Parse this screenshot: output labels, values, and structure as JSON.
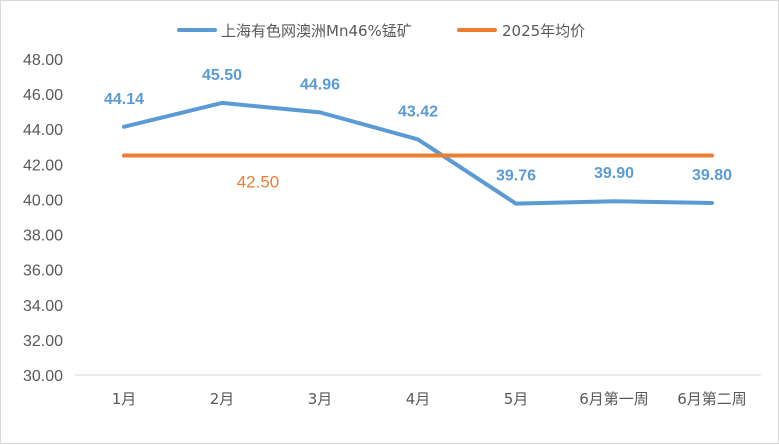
{
  "chart_data": {
    "type": "line",
    "title": "",
    "xlabel": "",
    "ylabel": "",
    "categories": [
      "1月",
      "2月",
      "3月",
      "4月",
      "5月",
      "6月第一周",
      "6月第二周"
    ],
    "ylim": [
      30,
      48
    ],
    "ytick_step": 2,
    "ytick_labels": [
      "30.00",
      "32.00",
      "34.00",
      "36.00",
      "38.00",
      "40.00",
      "42.00",
      "44.00",
      "46.00",
      "48.00"
    ],
    "grid": false,
    "legend_position": "top",
    "series": [
      {
        "name": "上海有色网澳洲Mn46%锰矿",
        "color": "#5B9BD5",
        "values": [
          44.14,
          45.5,
          44.96,
          43.42,
          39.76,
          39.9,
          39.8
        ],
        "labels": [
          "44.14",
          "45.50",
          "44.96",
          "43.42",
          "39.76",
          "39.90",
          "39.80"
        ]
      },
      {
        "name": "2025年均价",
        "color": "#ED7D31",
        "values": [
          42.5,
          42.5,
          42.5,
          42.5,
          42.5,
          42.5,
          42.5
        ],
        "label": "42.50"
      }
    ]
  }
}
